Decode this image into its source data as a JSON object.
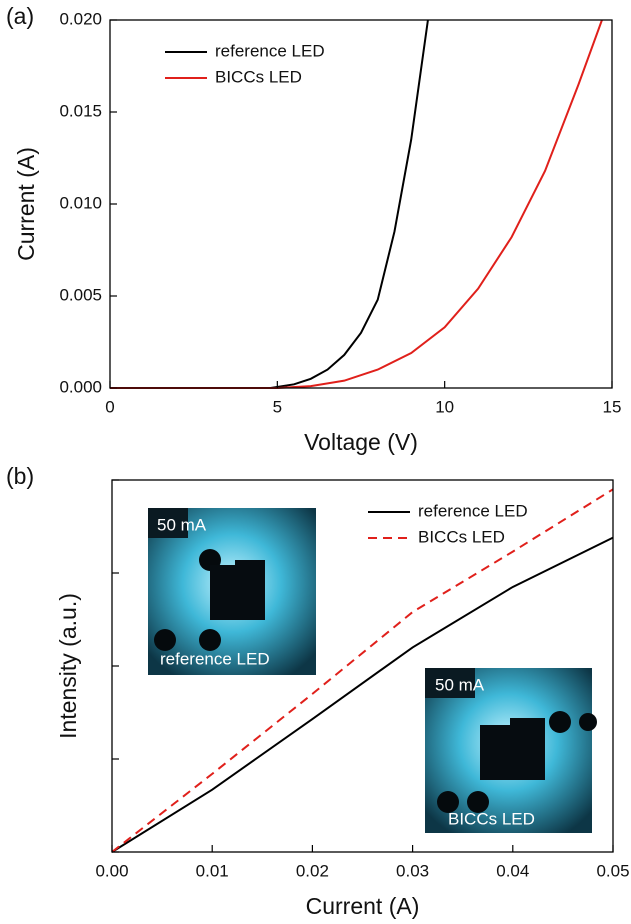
{
  "chart_data": [
    {
      "type": "line",
      "panel_label": "(a)",
      "x_label": "Voltage (V)",
      "y_label": "Current (A)",
      "xlim": [
        0,
        15
      ],
      "xticks": [
        0,
        5,
        10,
        15
      ],
      "ylim": [
        0,
        0.02
      ],
      "yticks": [
        {
          "value": 0,
          "label": "0.000"
        },
        0.005,
        {
          "value": 0.01,
          "label": "0.010"
        },
        0.015,
        {
          "value": 0.02,
          "label": "0.020"
        }
      ],
      "legend": "upper-left",
      "series": [
        {
          "name": "reference LED",
          "color": "#000000",
          "line_style": "solid",
          "x": [
            0,
            4.8,
            5.5,
            6,
            6.5,
            7,
            7.5,
            8,
            8.5,
            9,
            9.5
          ],
          "values": [
            0,
            0,
            0.0002,
            0.0005,
            0.001,
            0.0018,
            0.003,
            0.0048,
            0.0085,
            0.0135,
            0.02
          ]
        },
        {
          "name": "BICCs LED",
          "color": "#e0201b",
          "line_style": "solid",
          "x": [
            0,
            5,
            6,
            7,
            8,
            9,
            10,
            11,
            12,
            13,
            14,
            14.7
          ],
          "values": [
            0,
            0,
            0.0001,
            0.0004,
            0.001,
            0.0019,
            0.0033,
            0.0054,
            0.0082,
            0.0118,
            0.0165,
            0.02
          ]
        }
      ]
    },
    {
      "type": "line",
      "panel_label": "(b)",
      "x_label": "Current (A)",
      "y_label": "Intensity (a.u.)",
      "xlim": [
        0,
        0.05
      ],
      "xticks": [
        {
          "value": 0,
          "label": "0.00"
        },
        0.01,
        0.02,
        0.03,
        0.04,
        0.05
      ],
      "ylim": [
        0,
        4
      ],
      "yticks": [
        0,
        1,
        2,
        3,
        4
      ],
      "show_ytick_labels": false,
      "legend": "upper-right",
      "series": [
        {
          "name": "reference LED",
          "color": "#000000",
          "line_style": "solid",
          "x": [
            0,
            0.01,
            0.02,
            0.03,
            0.04,
            0.05
          ],
          "values": [
            0,
            0.67,
            1.43,
            2.2,
            2.85,
            3.38
          ]
        },
        {
          "name": "BICCs LED",
          "color": "#e0201b",
          "line_style": "dashed",
          "x": [
            0,
            0.01,
            0.02,
            0.03,
            0.04,
            0.05
          ],
          "values": [
            0,
            0.84,
            1.7,
            2.58,
            3.23,
            3.9
          ]
        }
      ],
      "insets": [
        {
          "current": "50 mA",
          "label": "reference LED"
        },
        {
          "current": "50 mA",
          "label": "BICCs LED"
        }
      ]
    }
  ]
}
